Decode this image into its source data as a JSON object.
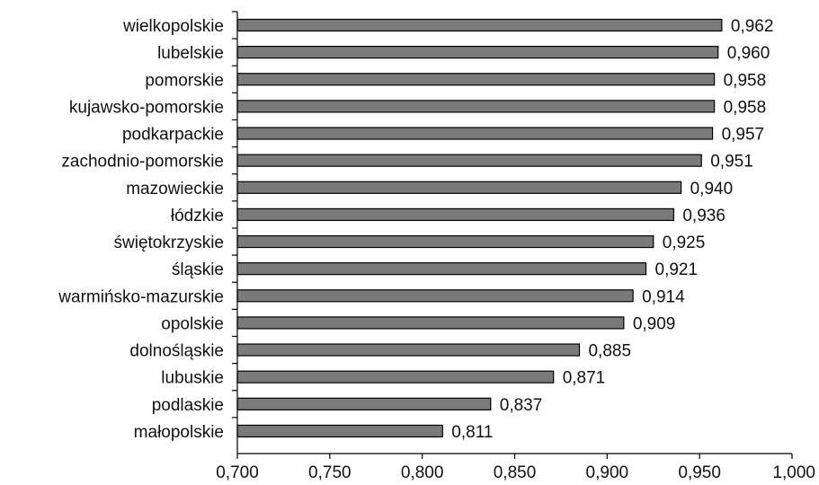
{
  "chart_data": {
    "type": "bar",
    "orientation": "horizontal",
    "title": "",
    "xlabel": "",
    "ylabel": "",
    "categories": [
      "wielkopolskie",
      "lubelskie",
      "pomorskie",
      "kujawsko-pomorskie",
      "podkarpackie",
      "zachodnio-pomorskie",
      "mazowieckie",
      "łódzkie",
      "świętokrzyskie",
      "śląskie",
      "warmińsko-mazurskie",
      "opolskie",
      "dolnośląskie",
      "lubuskie",
      "podlaskie",
      "małopolskie"
    ],
    "values": [
      0.962,
      0.96,
      0.958,
      0.958,
      0.957,
      0.951,
      0.94,
      0.936,
      0.925,
      0.921,
      0.914,
      0.909,
      0.885,
      0.871,
      0.837,
      0.811
    ],
    "value_labels": [
      "0,962",
      "0,960",
      "0,958",
      "0,958",
      "0,957",
      "0,951",
      "0,940",
      "0,936",
      "0,925",
      "0,921",
      "0,914",
      "0,909",
      "0,885",
      "0,871",
      "0,837",
      "0,811"
    ],
    "xlim": [
      0.7,
      1.0
    ],
    "x_ticks": [
      0.7,
      0.75,
      0.8,
      0.85,
      0.9,
      0.95,
      1.0
    ],
    "x_tick_labels": [
      "0,700",
      "0,750",
      "0,800",
      "0,850",
      "0,900",
      "0,950",
      "1,000"
    ],
    "grid": false,
    "legend": "none",
    "bar_color": "#7a7a7a"
  }
}
